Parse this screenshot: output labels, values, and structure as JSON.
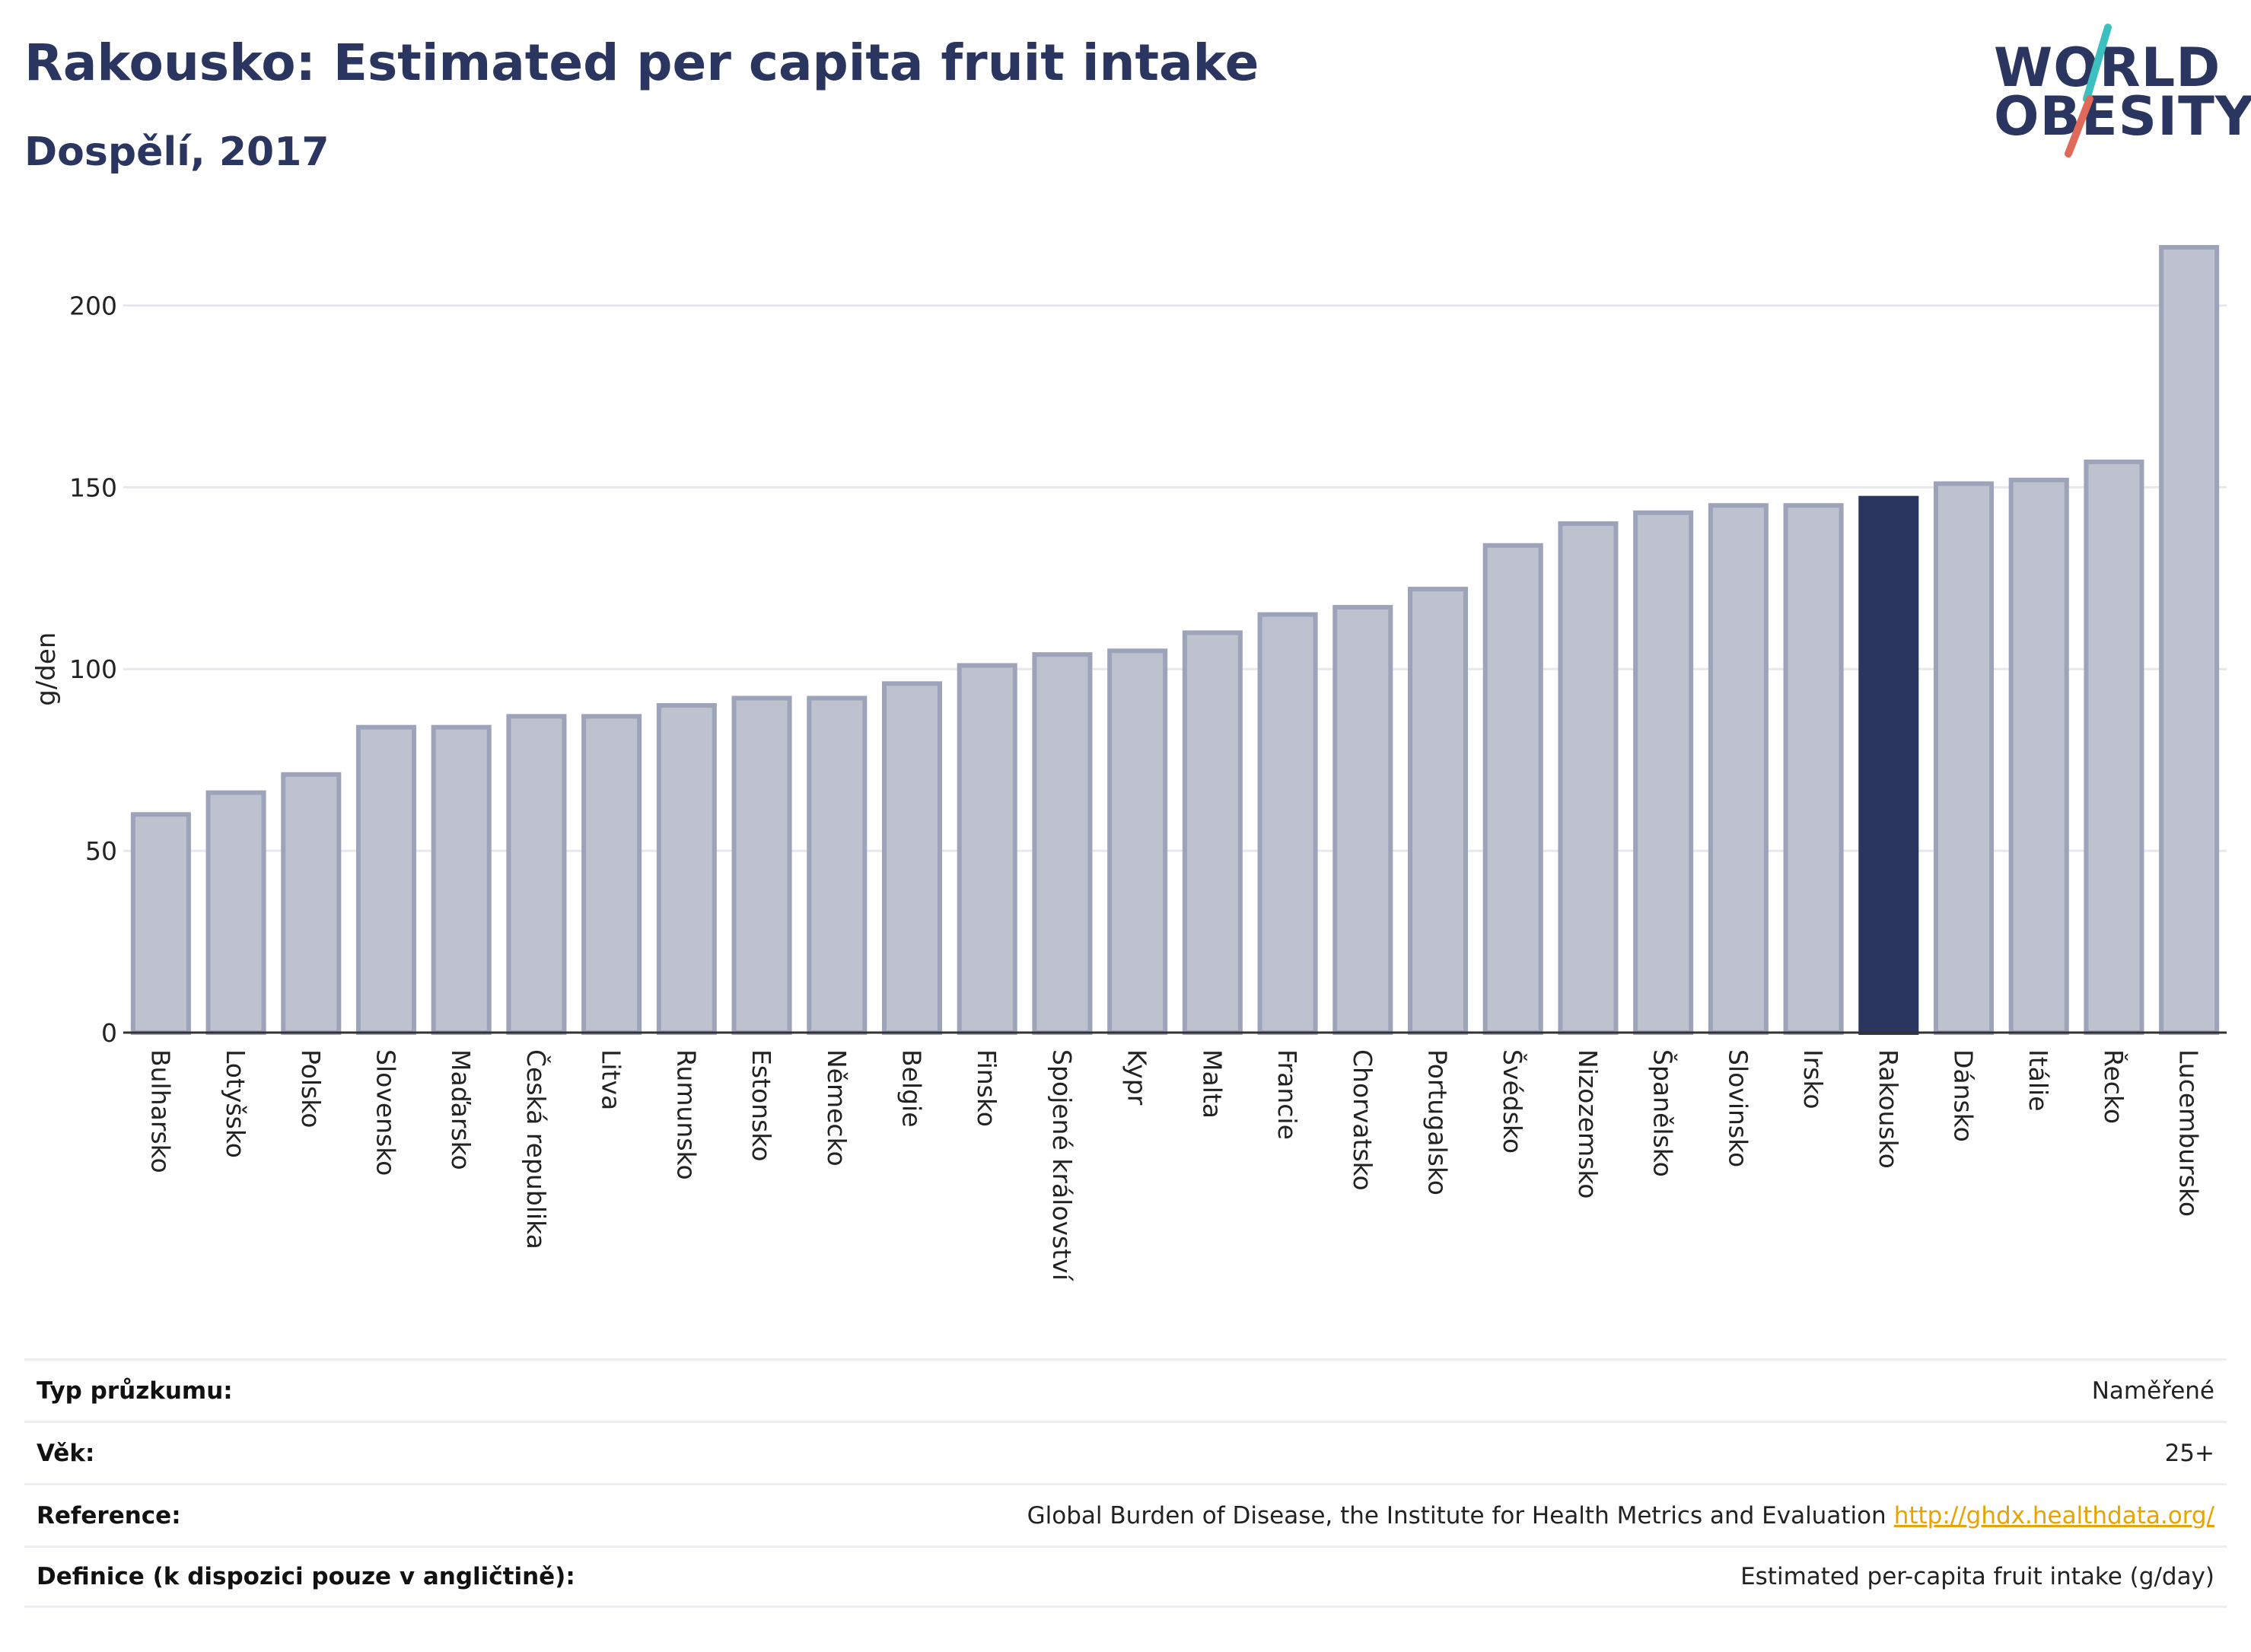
{
  "header": {
    "title": "Rakousko: Estimated per capita fruit intake",
    "subtitle": "Dospělí, 2017"
  },
  "logo": {
    "line1": "WORLD",
    "line2": "OBESITY",
    "accent_colors": [
      "#3bbfbf",
      "#e06a5a"
    ]
  },
  "colors": {
    "highlight_bar": "#2a3560",
    "bar_fill": "#bec2cf",
    "bar_stroke": "#9da3b8",
    "grid": "#e6e8ee"
  },
  "chart_data": {
    "type": "bar",
    "ylabel": "g/den",
    "ylim": [
      0,
      225
    ],
    "yticks": [
      0,
      50,
      100,
      150,
      200
    ],
    "highlight": "Rakousko",
    "grid": true,
    "categories": [
      "Bulharsko",
      "Lotyšsko",
      "Polsko",
      "Slovensko",
      "Maďarsko",
      "Česká republika",
      "Litva",
      "Rumunsko",
      "Estonsko",
      "Německo",
      "Belgie",
      "Finsko",
      "Spojené království",
      "Kypr",
      "Malta",
      "Francie",
      "Chorvatsko",
      "Portugalsko",
      "Švédsko",
      "Nizozemsko",
      "Španělsko",
      "Slovinsko",
      "Irsko",
      "Rakousko",
      "Dánsko",
      "Itálie",
      "Řecko",
      "Lucembursko"
    ],
    "values": [
      60,
      66,
      71,
      84,
      84,
      87,
      87,
      90,
      92,
      92,
      96,
      101,
      104,
      105,
      110,
      115,
      117,
      122,
      134,
      140,
      143,
      145,
      145,
      147,
      151,
      152,
      157,
      216
    ]
  },
  "info": {
    "rows": [
      {
        "label": "Typ průzkumu:",
        "value": "Naměřené"
      },
      {
        "label": "Věk:",
        "value": "25+"
      },
      {
        "label": "Reference:",
        "value": "Global Burden of Disease, the Institute for Health Metrics and Evaluation",
        "link": "http://ghdx.healthdata.org/"
      },
      {
        "label": "Definice (k dispozici pouze v angličtině):",
        "value": "Estimated per-capita fruit intake (g/day)"
      }
    ]
  }
}
